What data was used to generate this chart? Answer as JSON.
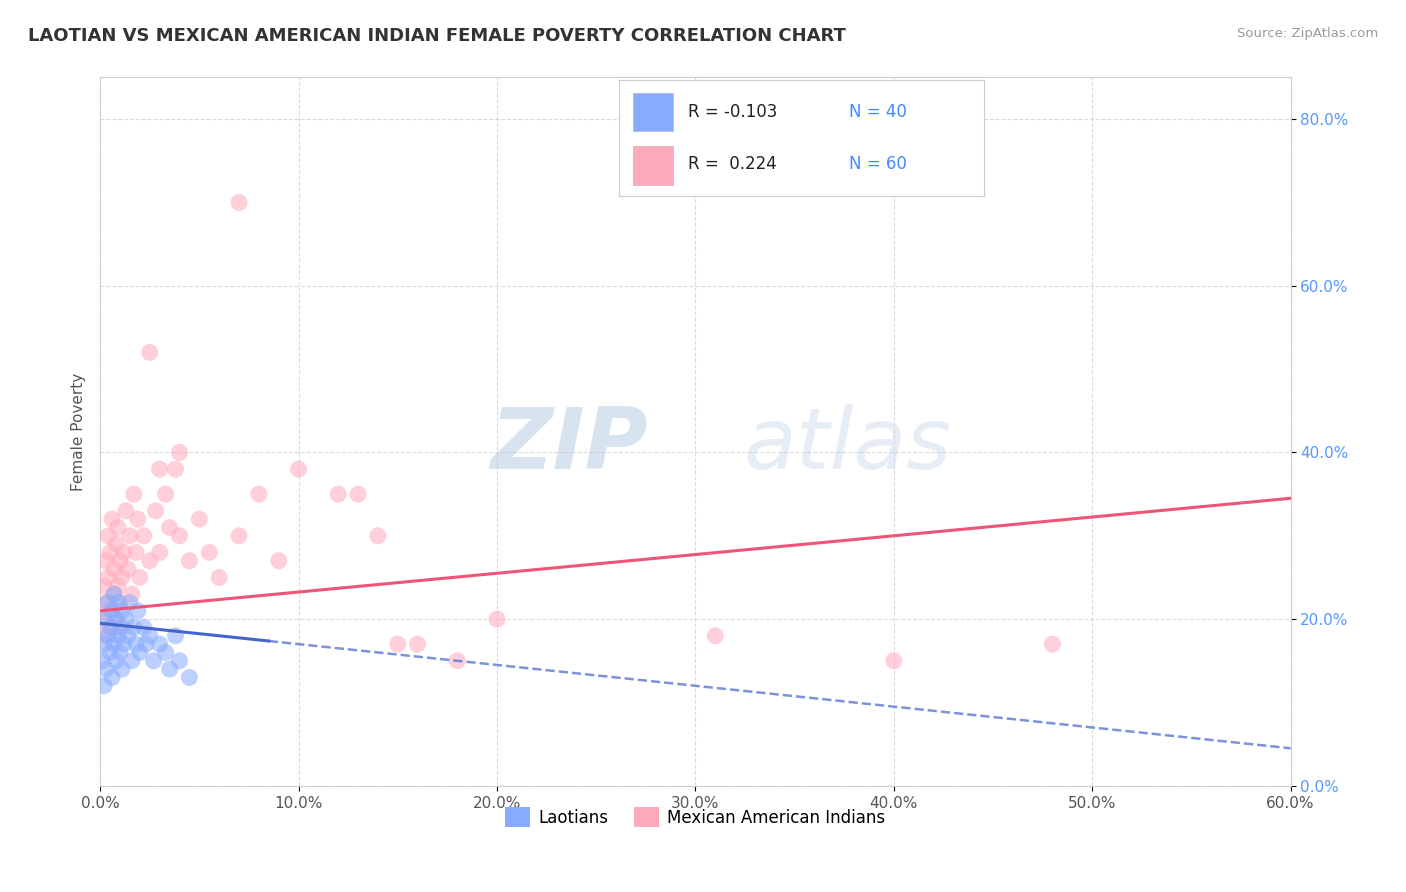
{
  "title": "LAOTIAN VS MEXICAN AMERICAN INDIAN FEMALE POVERTY CORRELATION CHART",
  "source": "Source: ZipAtlas.com",
  "ylabel": "Female Poverty",
  "watermark_zip": "ZIP",
  "watermark_atlas": "atlas",
  "r_laotian": -0.103,
  "n_laotian": 40,
  "r_mexican": 0.224,
  "n_mexican": 60,
  "laotian_color": "#88aaff",
  "mexican_color": "#ffaabb",
  "laotian_line_color": "#4466cc",
  "mexican_line_color": "#ee5577",
  "background_color": "#ffffff",
  "grid_color": "#cccccc",
  "xmin": 0.0,
  "xmax": 0.6,
  "ymin": 0.0,
  "ymax": 0.85,
  "yticks": [
    0.0,
    0.2,
    0.4,
    0.6,
    0.8
  ],
  "xticks": [
    0.0,
    0.1,
    0.2,
    0.3,
    0.4,
    0.5,
    0.6
  ],
  "laotian_scatter_x": [
    0.001,
    0.002,
    0.002,
    0.003,
    0.003,
    0.004,
    0.004,
    0.005,
    0.005,
    0.006,
    0.006,
    0.007,
    0.007,
    0.008,
    0.008,
    0.009,
    0.009,
    0.01,
    0.01,
    0.011,
    0.011,
    0.012,
    0.013,
    0.014,
    0.015,
    0.016,
    0.017,
    0.018,
    0.019,
    0.02,
    0.022,
    0.023,
    0.025,
    0.027,
    0.03,
    0.033,
    0.035,
    0.038,
    0.04,
    0.045
  ],
  "laotian_scatter_y": [
    0.15,
    0.17,
    0.12,
    0.2,
    0.14,
    0.18,
    0.22,
    0.16,
    0.19,
    0.13,
    0.21,
    0.17,
    0.23,
    0.15,
    0.2,
    0.18,
    0.22,
    0.16,
    0.19,
    0.21,
    0.14,
    0.17,
    0.2,
    0.18,
    0.22,
    0.15,
    0.19,
    0.17,
    0.21,
    0.16,
    0.19,
    0.17,
    0.18,
    0.15,
    0.17,
    0.16,
    0.14,
    0.18,
    0.15,
    0.13
  ],
  "mexican_scatter_x": [
    0.001,
    0.002,
    0.002,
    0.003,
    0.003,
    0.004,
    0.004,
    0.005,
    0.005,
    0.006,
    0.006,
    0.007,
    0.007,
    0.008,
    0.008,
    0.009,
    0.009,
    0.01,
    0.01,
    0.011,
    0.011,
    0.012,
    0.013,
    0.014,
    0.015,
    0.016,
    0.017,
    0.018,
    0.019,
    0.02,
    0.022,
    0.025,
    0.028,
    0.03,
    0.033,
    0.035,
    0.038,
    0.04,
    0.045,
    0.05,
    0.055,
    0.06,
    0.07,
    0.08,
    0.09,
    0.1,
    0.12,
    0.14,
    0.16,
    0.18,
    0.025,
    0.03,
    0.04,
    0.15,
    0.2,
    0.31,
    0.4,
    0.48,
    0.13,
    0.07
  ],
  "mexican_scatter_y": [
    0.2,
    0.24,
    0.18,
    0.27,
    0.22,
    0.25,
    0.3,
    0.21,
    0.28,
    0.19,
    0.32,
    0.23,
    0.26,
    0.2,
    0.29,
    0.24,
    0.31,
    0.22,
    0.27,
    0.25,
    0.19,
    0.28,
    0.33,
    0.26,
    0.3,
    0.23,
    0.35,
    0.28,
    0.32,
    0.25,
    0.3,
    0.27,
    0.33,
    0.28,
    0.35,
    0.31,
    0.38,
    0.3,
    0.27,
    0.32,
    0.28,
    0.25,
    0.3,
    0.35,
    0.27,
    0.38,
    0.35,
    0.3,
    0.17,
    0.15,
    0.52,
    0.38,
    0.4,
    0.17,
    0.2,
    0.18,
    0.15,
    0.17,
    0.35,
    0.7
  ],
  "legend_r_color": "#4466cc",
  "legend_n_color": "#4488ff",
  "tick_label_color_y": "#5599ff",
  "tick_label_color_x": "#555555"
}
